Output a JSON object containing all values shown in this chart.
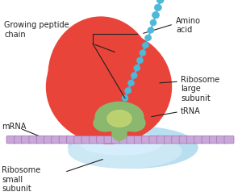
{
  "bg_color": "#ffffff",
  "large_subunit_color": "#e8443a",
  "small_subunit_color": "#b8dff0",
  "trna_color": "#8ab86e",
  "trna_highlight": "#c8d870",
  "mrna_color": "#c8a8d8",
  "amino_acid_color": "#4db8d8",
  "peptide_chain_color": "#4db8d8",
  "labels": {
    "growing_peptide": "Growing peptide\nchain",
    "amino_acid": "Amino\nacid",
    "large_subunit": "Ribosome\nlarge\nsubunit",
    "trna": "tRNA",
    "mrna": "mRNA",
    "small_subunit": "Ribosome\nsmall\nsubunit"
  },
  "label_fontsize": 7,
  "label_color": "#222222"
}
